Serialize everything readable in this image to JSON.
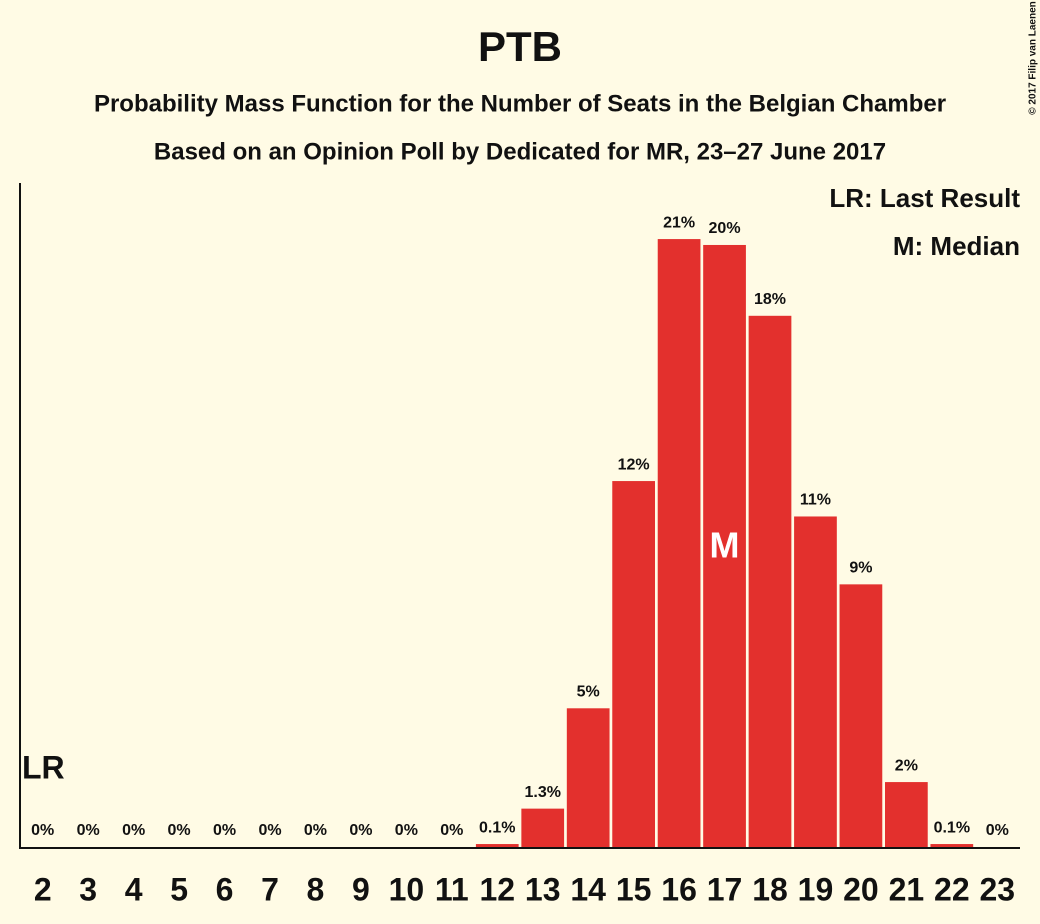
{
  "chart_data": {
    "type": "bar",
    "title": "PTB",
    "subtitle": "Probability Mass Function for the Number of Seats in the Belgian Chamber",
    "subtitle2": "Based on an Opinion Poll by Dedicated for MR, 23–27 June 2017",
    "copyright": "© 2017 Filip van Laenen",
    "categories": [
      2,
      3,
      4,
      5,
      6,
      7,
      8,
      9,
      10,
      11,
      12,
      13,
      14,
      15,
      16,
      17,
      18,
      19,
      20,
      21,
      22,
      23
    ],
    "values": [
      0,
      0,
      0,
      0,
      0,
      0,
      0,
      0,
      0,
      0,
      0.1,
      1.3,
      4.7,
      12.4,
      20.6,
      20.4,
      18.0,
      11.2,
      8.9,
      2.2,
      0.1,
      0
    ],
    "value_labels": [
      "0%",
      "0%",
      "0%",
      "0%",
      "0%",
      "0%",
      "0%",
      "0%",
      "0%",
      "0%",
      "0.1%",
      "1.3%",
      "5%",
      "12%",
      "21%",
      "20%",
      "18%",
      "11%",
      "9%",
      "2%",
      "0.1%",
      "0%"
    ],
    "color": "#e3302d",
    "ylim": [
      0,
      22.5
    ],
    "last_result": 2,
    "last_result_label": "LR",
    "median": 17,
    "median_label": "M",
    "legend": [
      "LR: Last Result",
      "M: Median"
    ]
  }
}
